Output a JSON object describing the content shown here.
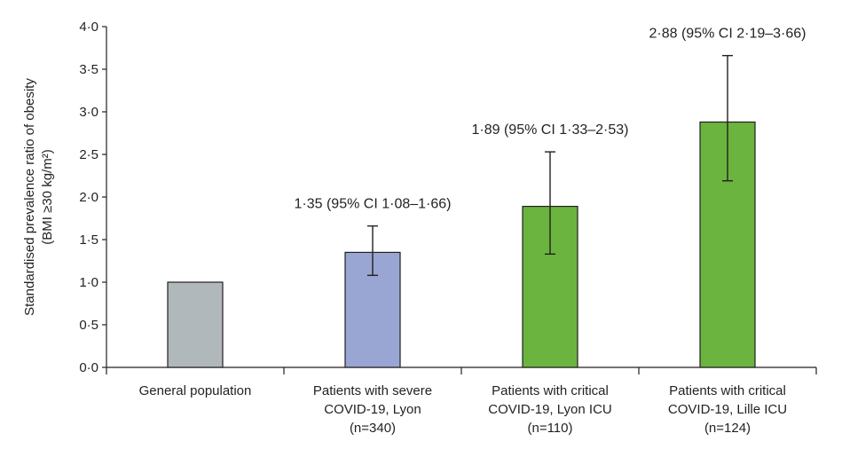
{
  "chart_data": {
    "type": "bar",
    "categories": [
      [
        "General population"
      ],
      [
        "Patients with severe",
        "COVID-19, Lyon",
        "(n=340)"
      ],
      [
        "Patients with critical",
        "COVID-19, Lyon ICU",
        "(n=110)"
      ],
      [
        "Patients with critical",
        "COVID-19, Lille ICU",
        "(n=124)"
      ]
    ],
    "values": [
      1.0,
      1.35,
      1.89,
      2.88
    ],
    "ci_lower": [
      null,
      1.08,
      1.33,
      2.19
    ],
    "ci_upper": [
      null,
      1.66,
      2.53,
      3.66
    ],
    "annotations": [
      "",
      "1·35 (95% CI 1·08–1·66)",
      "1·89 (95% CI 1·33–2·53)",
      "2·88 (95% CI 2·19–3·66)"
    ],
    "bar_colors": [
      "#b1b8bc",
      "#99a6d3",
      "#6ab43f",
      "#6ab43f"
    ],
    "ylabel_lines": [
      "Standardised prevalence ratio of obesity",
      "(BMI ≥30 kg/m²)"
    ],
    "yticks": [
      "0·0",
      "0·5",
      "1·0",
      "1·5",
      "2·0",
      "2·5",
      "3·0",
      "3·5",
      "4·0"
    ],
    "ylim": [
      0,
      4
    ],
    "grid": false
  }
}
